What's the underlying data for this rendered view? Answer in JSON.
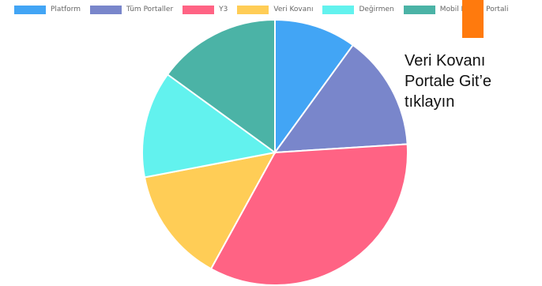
{
  "chart_data": {
    "type": "pie",
    "categories": [
      "Platform",
      "Tüm Portaller",
      "Y3",
      "Veri Kovanı",
      "Değirmen",
      "Mobil Eğitim Portali"
    ],
    "values": [
      10,
      14,
      34,
      14,
      13,
      15
    ],
    "colors": [
      "#42a5f5",
      "#7986cb",
      "#ff6384",
      "#ffcd56",
      "#62f2ee",
      "#4bb3a6"
    ],
    "legend_position": "top"
  },
  "callout": {
    "text": "Veri Kovanı\nPortale Git’e\ntıklayın",
    "pointer_color": "#ff7a0d"
  }
}
